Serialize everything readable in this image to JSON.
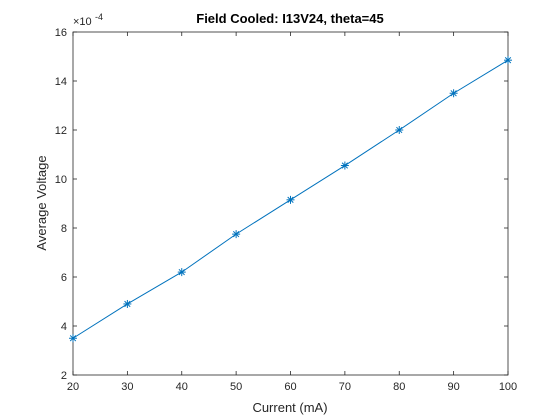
{
  "chart_data": {
    "type": "line",
    "title": "Field Cooled: I13V24, theta=45",
    "xlabel": "Current (mA)",
    "ylabel": "Average Voltage",
    "y_scale_exponent_label": "×10",
    "y_scale_exponent_power": "-4",
    "xlim": [
      20,
      100
    ],
    "ylim": [
      2,
      16
    ],
    "xticks": [
      20,
      30,
      40,
      50,
      60,
      70,
      80,
      90,
      100
    ],
    "yticks": [
      2,
      4,
      6,
      8,
      10,
      12,
      14,
      16
    ],
    "grid": false,
    "marker": "asterisk",
    "series": [
      {
        "x": [
          20,
          30,
          40,
          50,
          60,
          70,
          80,
          90,
          100
        ],
        "values": [
          3.5,
          4.9,
          6.2,
          7.75,
          9.15,
          10.55,
          12.0,
          13.5,
          14.85
        ]
      }
    ],
    "colors": {
      "line": "#0072BD",
      "axis": "#262626"
    }
  }
}
